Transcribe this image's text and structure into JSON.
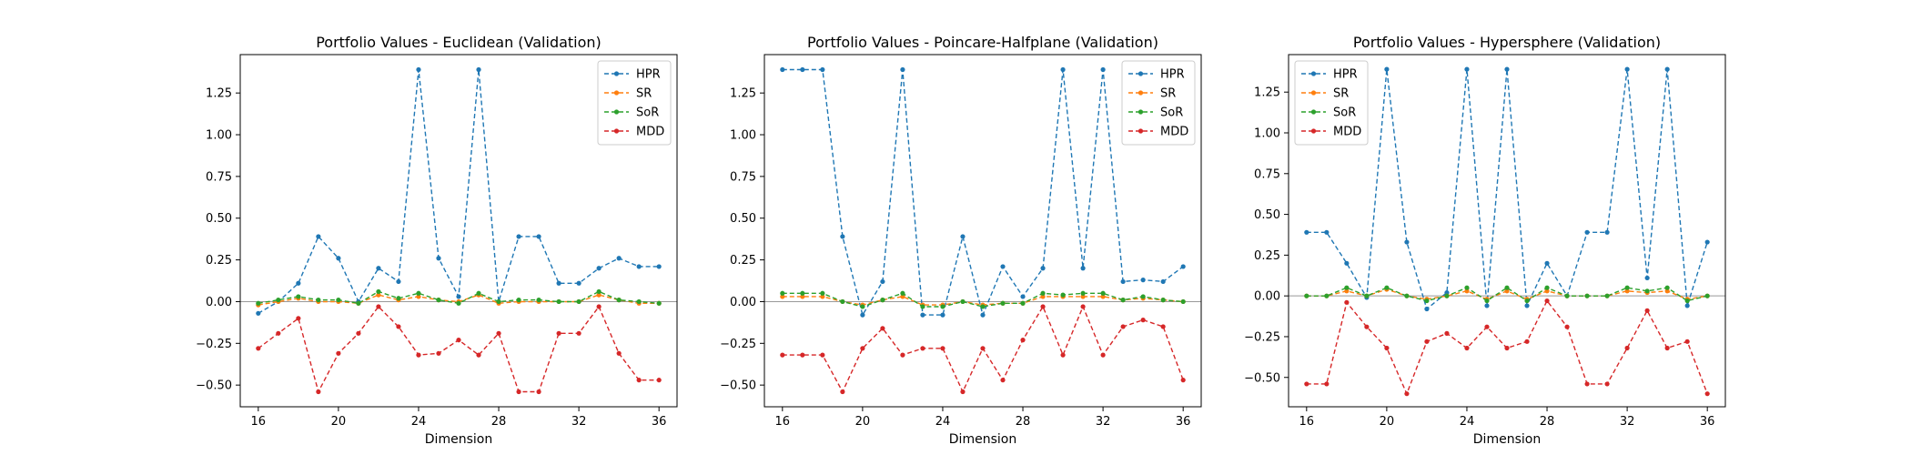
{
  "colors": {
    "HPR": "#1f77b4",
    "SR": "#ff7f0e",
    "SoR": "#2ca02c",
    "MDD": "#d62728",
    "zero_line": "#999999"
  },
  "chart_data": [
    {
      "type": "line",
      "title": "Portfolio Values - Euclidean (Validation)",
      "xlabel": "Dimension",
      "ylabel": "",
      "x": [
        16,
        17,
        18,
        19,
        20,
        21,
        22,
        23,
        24,
        25,
        26,
        27,
        28,
        29,
        30,
        31,
        32,
        33,
        34,
        35,
        36
      ],
      "xlim": [
        15.1,
        36.9
      ],
      "ylim": [
        -0.63,
        1.48
      ],
      "xticks": [
        16,
        20,
        24,
        28,
        32,
        36
      ],
      "yticks": [
        -0.5,
        -0.25,
        0.0,
        0.25,
        0.5,
        0.75,
        1.0,
        1.25
      ],
      "ytick_labels": [
        "−0.50",
        "−0.25",
        "0.00",
        "0.25",
        "0.50",
        "0.75",
        "1.00",
        "1.25"
      ],
      "legend_position": "top-right",
      "series": [
        {
          "name": "HPR",
          "values": [
            -0.07,
            0.0,
            0.11,
            0.39,
            0.26,
            0.0,
            0.2,
            0.12,
            1.39,
            0.26,
            0.03,
            1.39,
            0.0,
            0.39,
            0.39,
            0.11,
            0.11,
            0.2,
            0.26,
            0.21,
            0.21
          ]
        },
        {
          "name": "SR",
          "values": [
            -0.02,
            0.0,
            0.02,
            0.0,
            0.0,
            -0.01,
            0.04,
            0.01,
            0.03,
            0.01,
            0.0,
            0.04,
            -0.01,
            0.0,
            0.0,
            0.0,
            0.0,
            0.04,
            0.01,
            -0.01,
            -0.01
          ]
        },
        {
          "name": "SoR",
          "values": [
            -0.01,
            0.01,
            0.03,
            0.01,
            0.01,
            -0.01,
            0.06,
            0.02,
            0.05,
            0.01,
            -0.01,
            0.05,
            0.0,
            0.01,
            0.01,
            0.0,
            0.0,
            0.06,
            0.01,
            0.0,
            -0.01
          ]
        },
        {
          "name": "MDD",
          "values": [
            -0.28,
            -0.19,
            -0.1,
            -0.54,
            -0.31,
            -0.19,
            -0.03,
            -0.15,
            -0.32,
            -0.31,
            -0.23,
            -0.32,
            -0.19,
            -0.54,
            -0.54,
            -0.19,
            -0.19,
            -0.03,
            -0.31,
            -0.47,
            -0.47
          ]
        }
      ]
    },
    {
      "type": "line",
      "title": "Portfolio Values - Poincare-Halfplane (Validation)",
      "xlabel": "Dimension",
      "ylabel": "",
      "x": [
        16,
        17,
        18,
        19,
        20,
        21,
        22,
        23,
        24,
        25,
        26,
        27,
        28,
        29,
        30,
        31,
        32,
        33,
        34,
        35,
        36
      ],
      "xlim": [
        15.1,
        36.9
      ],
      "ylim": [
        -0.63,
        1.48
      ],
      "xticks": [
        16,
        20,
        24,
        28,
        32,
        36
      ],
      "yticks": [
        -0.5,
        -0.25,
        0.0,
        0.25,
        0.5,
        0.75,
        1.0,
        1.25
      ],
      "ytick_labels": [
        "−0.50",
        "−0.25",
        "0.00",
        "0.25",
        "0.50",
        "0.75",
        "1.00",
        "1.25"
      ],
      "legend_position": "top-right",
      "series": [
        {
          "name": "HPR",
          "values": [
            1.39,
            1.39,
            1.39,
            0.39,
            -0.08,
            0.12,
            1.39,
            -0.08,
            -0.08,
            0.39,
            -0.08,
            0.21,
            0.03,
            0.2,
            1.39,
            0.2,
            1.39,
            0.12,
            0.13,
            0.12,
            0.21
          ]
        },
        {
          "name": "SR",
          "values": [
            0.03,
            0.03,
            0.03,
            0.0,
            -0.02,
            0.01,
            0.03,
            -0.02,
            -0.02,
            0.0,
            -0.02,
            -0.01,
            -0.01,
            0.03,
            0.03,
            0.03,
            0.03,
            0.01,
            0.02,
            0.01,
            0.0
          ]
        },
        {
          "name": "SoR",
          "values": [
            0.05,
            0.05,
            0.05,
            0.0,
            -0.03,
            0.01,
            0.05,
            -0.03,
            -0.03,
            0.0,
            -0.03,
            -0.01,
            -0.01,
            0.05,
            0.04,
            0.05,
            0.05,
            0.01,
            0.03,
            0.01,
            0.0
          ]
        },
        {
          "name": "MDD",
          "values": [
            -0.32,
            -0.32,
            -0.32,
            -0.54,
            -0.28,
            -0.16,
            -0.32,
            -0.28,
            -0.28,
            -0.54,
            -0.28,
            -0.47,
            -0.23,
            -0.03,
            -0.32,
            -0.03,
            -0.32,
            -0.15,
            -0.11,
            -0.15,
            -0.47
          ]
        }
      ]
    },
    {
      "type": "line",
      "title": "Portfolio Values - Hypersphere (Validation)",
      "xlabel": "Dimension",
      "ylabel": "",
      "x": [
        16,
        17,
        18,
        19,
        20,
        21,
        22,
        23,
        24,
        25,
        26,
        27,
        28,
        29,
        30,
        31,
        32,
        33,
        34,
        35,
        36
      ],
      "xlim": [
        15.1,
        36.9
      ],
      "ylim": [
        -0.68,
        1.48
      ],
      "xticks": [
        16,
        20,
        24,
        28,
        32,
        36
      ],
      "yticks": [
        -0.5,
        -0.25,
        0.0,
        0.25,
        0.5,
        0.75,
        1.0,
        1.25
      ],
      "ytick_labels": [
        "−0.50",
        "−0.25",
        "0.00",
        "0.25",
        "0.50",
        "0.75",
        "1.00",
        "1.25"
      ],
      "legend_position": "top-left",
      "series": [
        {
          "name": "HPR",
          "values": [
            0.39,
            0.39,
            0.2,
            -0.01,
            1.39,
            0.33,
            -0.08,
            0.02,
            1.39,
            -0.06,
            1.39,
            -0.06,
            0.2,
            0.0,
            0.39,
            0.39,
            1.39,
            0.11,
            1.39,
            -0.06,
            0.33
          ]
        },
        {
          "name": "SR",
          "values": [
            0.0,
            0.0,
            0.03,
            0.0,
            0.04,
            0.0,
            -0.02,
            0.0,
            0.03,
            -0.02,
            0.03,
            -0.02,
            0.03,
            0.0,
            0.0,
            0.0,
            0.03,
            0.02,
            0.03,
            -0.02,
            0.0
          ]
        },
        {
          "name": "SoR",
          "values": [
            0.0,
            0.0,
            0.05,
            0.0,
            0.05,
            0.0,
            -0.03,
            0.0,
            0.05,
            -0.03,
            0.05,
            -0.03,
            0.05,
            0.0,
            0.0,
            0.0,
            0.05,
            0.03,
            0.05,
            -0.03,
            0.0
          ]
        },
        {
          "name": "MDD",
          "values": [
            -0.54,
            -0.54,
            -0.04,
            -0.19,
            -0.32,
            -0.6,
            -0.28,
            -0.23,
            -0.32,
            -0.19,
            -0.32,
            -0.28,
            -0.03,
            -0.19,
            -0.54,
            -0.54,
            -0.32,
            -0.09,
            -0.32,
            -0.28,
            -0.6
          ]
        }
      ]
    }
  ]
}
